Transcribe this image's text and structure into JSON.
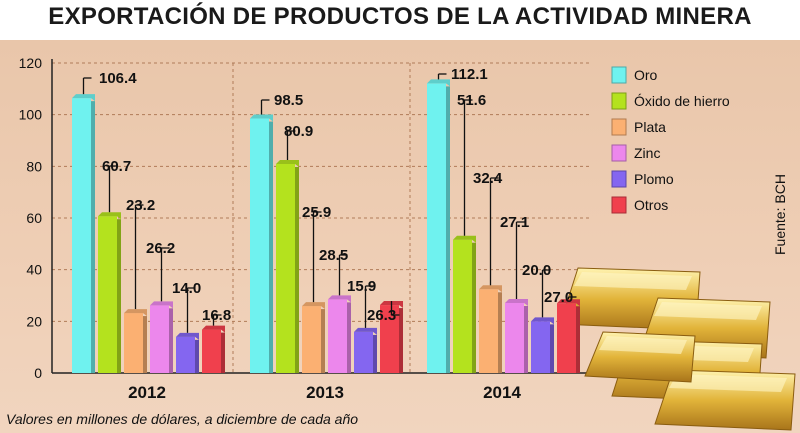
{
  "title": "EXPORTACIÓN DE PRODUCTOS DE LA ACTIVIDAD MINERA",
  "source": "Fuente: BCH",
  "note": "Valores en millones de dólares, a diciembre de cada año",
  "chart_data": {
    "type": "bar",
    "title": "EXPORTACIÓN DE PRODUCTOS DE LA ACTIVIDAD MINERA",
    "xlabel": "",
    "ylabel": "",
    "ylim": [
      0,
      120
    ],
    "yticks": [
      0,
      20,
      40,
      60,
      80,
      100,
      120
    ],
    "grid": true,
    "legend": "top-right",
    "categories": [
      "2012",
      "2013",
      "2014"
    ],
    "series": [
      {
        "name": "Oro",
        "color": "#6ff2ef",
        "values": [
          106.4,
          98.5,
          112.1
        ]
      },
      {
        "name": "Óxido de hierro",
        "color": "#b4e21e",
        "values": [
          60.7,
          80.9,
          51.6
        ]
      },
      {
        "name": "Plata",
        "color": "#fbb072",
        "values": [
          23.2,
          25.9,
          32.4
        ]
      },
      {
        "name": "Zinc",
        "color": "#ec87ec",
        "values": [
          26.2,
          28.5,
          27.1
        ]
      },
      {
        "name": "Plomo",
        "color": "#8466f0",
        "values": [
          14.0,
          15.9,
          20.0
        ]
      },
      {
        "name": "Otros",
        "color": "#f0404d",
        "values": [
          16.8,
          26.3,
          27.0
        ]
      }
    ],
    "data_labels": [
      [
        "106.4",
        "60.7",
        "23.2",
        "26.2",
        "14.0",
        "16.8"
      ],
      [
        "98.5",
        "80.9",
        "25.9",
        "28.5",
        "15.9",
        "26.3"
      ],
      [
        "112.1",
        "51.6",
        "32.4",
        "27.1",
        "20.0",
        "27.0"
      ]
    ]
  }
}
